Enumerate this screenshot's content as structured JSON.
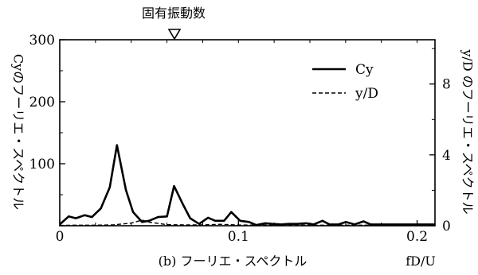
{
  "chart_data": {
    "type": "line",
    "annotation": "固有振動数",
    "annotation_x": 0.0605,
    "caption": "(b) フーリエ・スペクトル",
    "xlabel": "fD/U",
    "ylabel_left": "Cyのフーリエ・スペクトル",
    "ylabel_right": "y/D のフーリエ・スペクトル",
    "xlim": [
      0,
      0.21
    ],
    "ylim_left": [
      0,
      300
    ],
    "ylim_right": [
      0,
      10.5
    ],
    "x_ticks": [
      {
        "value": 0,
        "label": "0"
      },
      {
        "value": 0.1,
        "label": "0.1"
      },
      {
        "value": 0.2,
        "label": "0.2"
      }
    ],
    "y_ticks_left": [
      {
        "value": 0,
        "label": ""
      },
      {
        "value": 100,
        "label": "100"
      },
      {
        "value": 200,
        "label": "200"
      },
      {
        "value": 300,
        "label": "300"
      }
    ],
    "y_ticks_right": [
      {
        "value": 0,
        "label": "0"
      },
      {
        "value": 4,
        "label": "4"
      },
      {
        "value": 8,
        "label": "8"
      }
    ],
    "series": [
      {
        "name": "Cy",
        "axis": "left",
        "style": "solid",
        "x": [
          0,
          0.005,
          0.009,
          0.014,
          0.018,
          0.023,
          0.028,
          0.032,
          0.037,
          0.041,
          0.046,
          0.05,
          0.055,
          0.06,
          0.064,
          0.069,
          0.073,
          0.078,
          0.083,
          0.087,
          0.092,
          0.096,
          0.101,
          0.106,
          0.11,
          0.115,
          0.119,
          0.124,
          0.128,
          0.133,
          0.138,
          0.142,
          0.147,
          0.151,
          0.156,
          0.16,
          0.165,
          0.17,
          0.174,
          0.179,
          0.183,
          0.188,
          0.193,
          0.197,
          0.202,
          0.206,
          0.21
        ],
        "values": [
          2,
          15,
          12,
          17,
          14,
          28,
          62,
          130,
          58,
          22,
          6,
          8,
          14,
          15,
          64,
          34,
          12,
          3,
          13,
          8,
          8,
          22,
          8,
          6,
          1,
          4,
          3,
          2,
          3,
          3,
          4,
          2,
          8,
          2,
          2,
          6,
          2,
          7,
          2,
          2,
          2,
          2,
          2,
          2,
          2,
          2,
          2
        ]
      },
      {
        "name": "y/D",
        "axis": "right",
        "style": "dashed",
        "x": [
          0,
          0.01,
          0.02,
          0.03,
          0.04,
          0.046,
          0.05,
          0.06,
          0.07,
          0.08,
          0.09,
          0.1,
          0.12,
          0.14,
          0.16,
          0.18,
          0.2,
          0.21
        ],
        "values": [
          0.02,
          0.03,
          0.03,
          0.05,
          0.15,
          0.32,
          0.2,
          0.06,
          0.05,
          0.05,
          0.08,
          0.04,
          0.03,
          0.03,
          0.03,
          0.03,
          0.03,
          0.03
        ]
      }
    ],
    "legend_position": "top-right",
    "grid": false
  }
}
